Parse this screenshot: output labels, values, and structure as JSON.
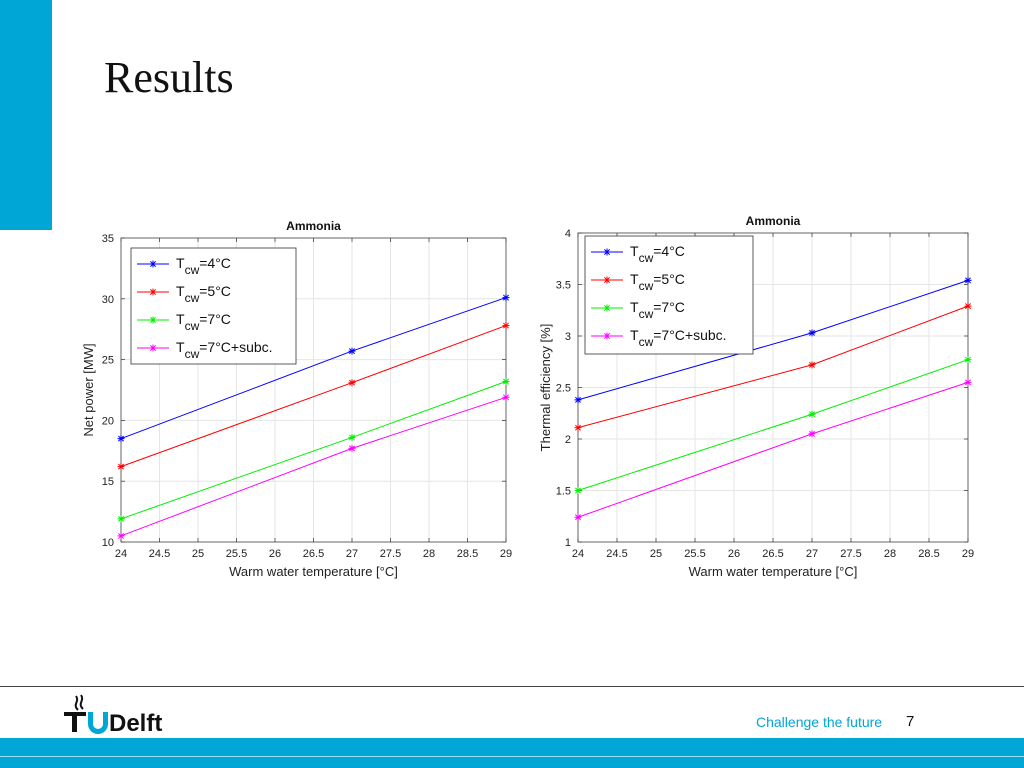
{
  "slide": {
    "title": "Results",
    "tagline": "Challenge the future",
    "page_number": "7",
    "logo_text": "TUDelft",
    "accent_color": "#00a6d6"
  },
  "chart_data": [
    {
      "type": "line",
      "title": "Ammonia",
      "xlabel": "Warm water temperature [°C]",
      "ylabel": "Net power [MW]",
      "xlim": [
        24,
        29
      ],
      "ylim": [
        10,
        35
      ],
      "xticks": [
        24,
        24.5,
        25,
        25.5,
        26,
        26.5,
        27,
        27.5,
        28,
        28.5,
        29
      ],
      "yticks": [
        10,
        15,
        20,
        25,
        30,
        35
      ],
      "grid": true,
      "legend_position": "top-left",
      "x": [
        24,
        27,
        29
      ],
      "series": [
        {
          "name": "=4°C",
          "legend_sub": "cw",
          "legend_pre": "T",
          "color": "#0000ff",
          "values": [
            18.5,
            25.7,
            30.1
          ]
        },
        {
          "name": "=5°C",
          "legend_sub": "cw",
          "legend_pre": "T",
          "color": "#ff0000",
          "values": [
            16.2,
            23.1,
            27.8
          ]
        },
        {
          "name": "=7°C",
          "legend_sub": "cw",
          "legend_pre": "T",
          "color": "#00ee00",
          "values": [
            11.9,
            18.6,
            23.2
          ]
        },
        {
          "name": "=7°C+subc.",
          "legend_sub": "cw",
          "legend_pre": "T",
          "color": "#ff00ff",
          "values": [
            10.5,
            17.7,
            21.9
          ]
        }
      ]
    },
    {
      "type": "line",
      "title": "Ammonia",
      "xlabel": "Warm water temperature [°C]",
      "ylabel": "Thermal efficiency [%]",
      "xlim": [
        24,
        29
      ],
      "ylim": [
        1,
        4
      ],
      "xticks": [
        24,
        24.5,
        25,
        25.5,
        26,
        26.5,
        27,
        27.5,
        28,
        28.5,
        29
      ],
      "yticks": [
        1,
        1.5,
        2,
        2.5,
        3,
        3.5,
        4
      ],
      "grid": true,
      "legend_position": "top-left",
      "x": [
        24,
        27,
        29
      ],
      "series": [
        {
          "name": "=4°C",
          "legend_sub": "cw",
          "legend_pre": "T",
          "color": "#0000ff",
          "values": [
            2.38,
            3.03,
            3.54
          ]
        },
        {
          "name": "=5°C",
          "legend_sub": "cw",
          "legend_pre": "T",
          "color": "#ff0000",
          "values": [
            2.11,
            2.72,
            3.29
          ]
        },
        {
          "name": "=7°C",
          "legend_sub": "cw",
          "legend_pre": "T",
          "color": "#00ee00",
          "values": [
            1.5,
            2.24,
            2.77
          ]
        },
        {
          "name": "=7°C+subc.",
          "legend_sub": "cw",
          "legend_pre": "T",
          "color": "#ff00ff",
          "values": [
            1.24,
            2.05,
            2.55
          ]
        }
      ]
    }
  ]
}
